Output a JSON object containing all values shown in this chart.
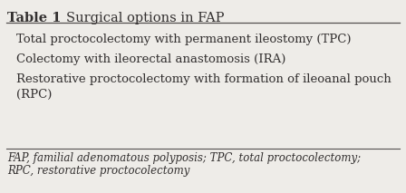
{
  "title_bold": "Table 1 ",
  "title_normal": "Surgical options in FAP",
  "rows": [
    "Total proctocolectomy with permanent ileostomy (TPC)",
    "Colectomy with ileorectal anastomosis (IRA)",
    "Restorative proctocolectomy with formation of ileoanal pouch\n(RPC)"
  ],
  "footnote_line1": "FAP, familial adenomatous polyposis; TPC, total proctocolectomy;",
  "footnote_line2": "RPC, restorative proctocolectomy",
  "bg_color": "#eeece8",
  "text_color": "#333030",
  "line_color": "#555050",
  "title_fontsize": 10.5,
  "body_fontsize": 9.5,
  "footnote_fontsize": 8.5
}
